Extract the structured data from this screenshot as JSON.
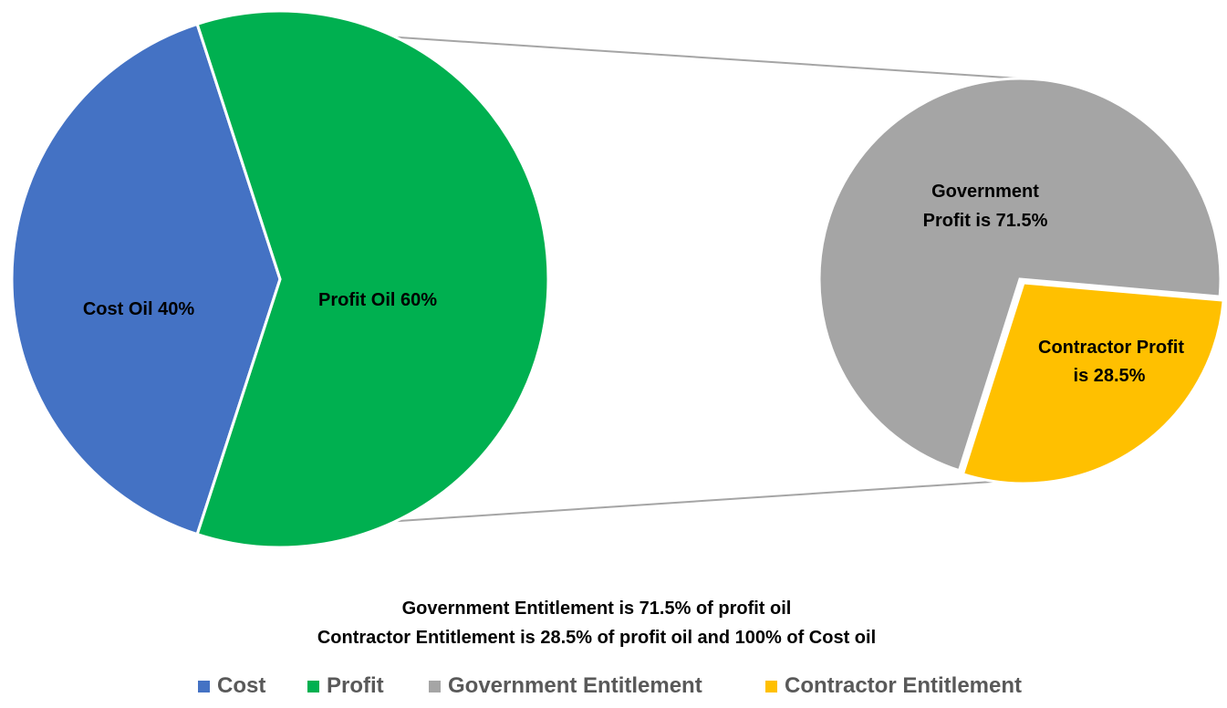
{
  "chart_data": [
    {
      "type": "pie",
      "slices": [
        {
          "name": "Cost",
          "label": "Cost Oil 40%",
          "value": 40,
          "color": "#4472C4"
        },
        {
          "name": "Profit",
          "label": "Profit Oil 60%",
          "value": 60,
          "color": "#00B050"
        }
      ]
    },
    {
      "type": "pie",
      "slices": [
        {
          "name": "Government Entitlement",
          "label_lines": [
            "Government",
            "Profit is 71.5%"
          ],
          "value": 71.5,
          "color": "#A5A5A5"
        },
        {
          "name": "Contractor Entitlement",
          "label_lines": [
            "Contractor Profit",
            "is 28.5%"
          ],
          "value": 28.5,
          "color": "#FFC000"
        }
      ]
    }
  ],
  "notes": {
    "line1": "Government Entitlement is 71.5% of profit oil",
    "line2": "Contractor Entitlement is 28.5% of profit oil and 100% of Cost oil"
  },
  "legend": [
    {
      "label": "Cost",
      "color": "#4472C4"
    },
    {
      "label": "Profit",
      "color": "#00B050"
    },
    {
      "label": "Government Entitlement",
      "color": "#A5A5A5"
    },
    {
      "label": "Contractor Entitlement",
      "color": "#FFC000"
    }
  ]
}
